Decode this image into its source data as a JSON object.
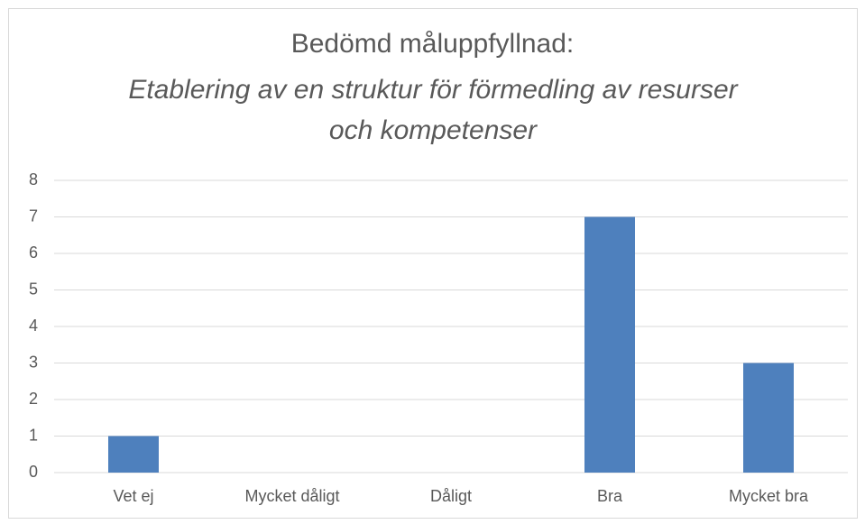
{
  "chart_data": {
    "type": "bar",
    "title": "Bedömd måluppfyllnad:",
    "subtitle": "Etablering av en struktur för förmedling av resurser och kompetenser",
    "categories": [
      "Vet ej",
      "Mycket dåligt",
      "Dåligt",
      "Bra",
      "Mycket bra"
    ],
    "values": [
      1,
      0,
      0,
      7,
      3
    ],
    "color": "#4e80bd",
    "ylim": [
      0,
      8
    ],
    "yticks": [
      0,
      1,
      2,
      3,
      4,
      5,
      6,
      7,
      8
    ],
    "grid": true
  }
}
